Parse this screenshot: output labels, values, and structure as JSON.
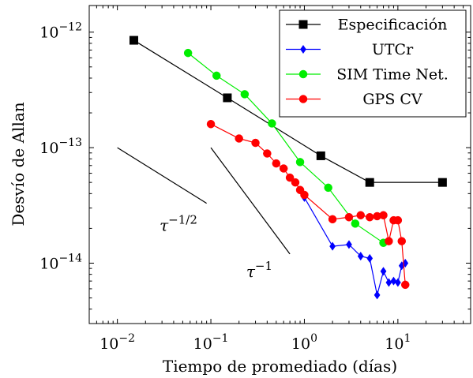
{
  "chart_data": {
    "type": "line",
    "xlabel": "Tiempo de promediado (días)",
    "ylabel": "Desvío de Allan",
    "xscale": "log",
    "yscale": "log",
    "xlim": [
      0.005,
      60
    ],
    "ylim": [
      3e-15,
      1.7e-12
    ],
    "x_ticks": [
      {
        "value": 0.01,
        "label": "10",
        "exp": "−2"
      },
      {
        "value": 0.1,
        "label": "10",
        "exp": "−1"
      },
      {
        "value": 1,
        "label": "10",
        "exp": "0"
      },
      {
        "value": 10,
        "label": "10",
        "exp": "1"
      }
    ],
    "y_ticks": [
      {
        "value": 1e-14,
        "label": "10",
        "exp": "−14"
      },
      {
        "value": 1e-13,
        "label": "10",
        "exp": "−13"
      },
      {
        "value": 1e-12,
        "label": "10",
        "exp": "−12"
      }
    ],
    "legend_position": "top-right",
    "series": [
      {
        "name": "Especificación",
        "color": "#000000",
        "marker": "square",
        "x": [
          0.015,
          0.15,
          1.5,
          5,
          30
        ],
        "y": [
          8.5e-13,
          2.7e-13,
          8.5e-14,
          5e-14,
          5e-14
        ]
      },
      {
        "name": "UTCr",
        "color": "#0000ff",
        "marker": "diamond",
        "x": [
          1.0,
          2.0,
          3.0,
          4.0,
          5.0,
          6.0,
          7.0,
          8.0,
          9.0,
          10.0,
          11.0,
          12.0
        ],
        "y": [
          3.7e-14,
          1.4e-14,
          1.45e-14,
          1.15e-14,
          1.1e-14,
          5.3e-15,
          8.5e-15,
          6.8e-15,
          7e-15,
          6.8e-15,
          9.5e-15,
          1e-14
        ]
      },
      {
        "name": "SIM Time Net.",
        "color": "#00ee00",
        "marker": "circle",
        "x": [
          0.057,
          0.115,
          0.23,
          0.45,
          0.9,
          1.8,
          3.5,
          7.0
        ],
        "y": [
          6.6e-13,
          4.2e-13,
          2.9e-13,
          1.62e-13,
          7.5e-14,
          4.5e-14,
          2.2e-14,
          1.5e-14
        ]
      },
      {
        "name": "GPS CV",
        "color": "#ff0000",
        "marker": "circle",
        "x": [
          0.1,
          0.2,
          0.3,
          0.4,
          0.5,
          0.6,
          0.7,
          0.8,
          0.9,
          1.0,
          2.0,
          3.0,
          4.0,
          5.0,
          6.0,
          7.0,
          8.0,
          9.0,
          10.0,
          11.0,
          12.0
        ],
        "y": [
          1.6e-13,
          1.2e-13,
          1.1e-13,
          8.9e-14,
          7.3e-14,
          6.6e-14,
          5.5e-14,
          5e-14,
          4.3e-14,
          3.9e-14,
          2.4e-14,
          2.5e-14,
          2.6e-14,
          2.5e-14,
          2.55e-14,
          2.6e-14,
          1.55e-14,
          2.35e-14,
          2.35e-14,
          1.55e-14,
          6.5e-15
        ]
      }
    ],
    "annotations": [
      {
        "name": "slope-half",
        "base": "τ",
        "exp": "−1/2",
        "x1": 0.01,
        "y1": 1e-13,
        "x2": 0.09,
        "y2": 3.3e-14,
        "label_x": 0.045,
        "label_y": 1.9e-14
      },
      {
        "name": "slope-one",
        "base": "τ",
        "exp": "−1",
        "x1": 0.1,
        "y1": 1e-13,
        "x2": 0.7,
        "y2": 1.2e-14,
        "label_x": 0.33,
        "label_y": 7.6e-15
      }
    ]
  }
}
